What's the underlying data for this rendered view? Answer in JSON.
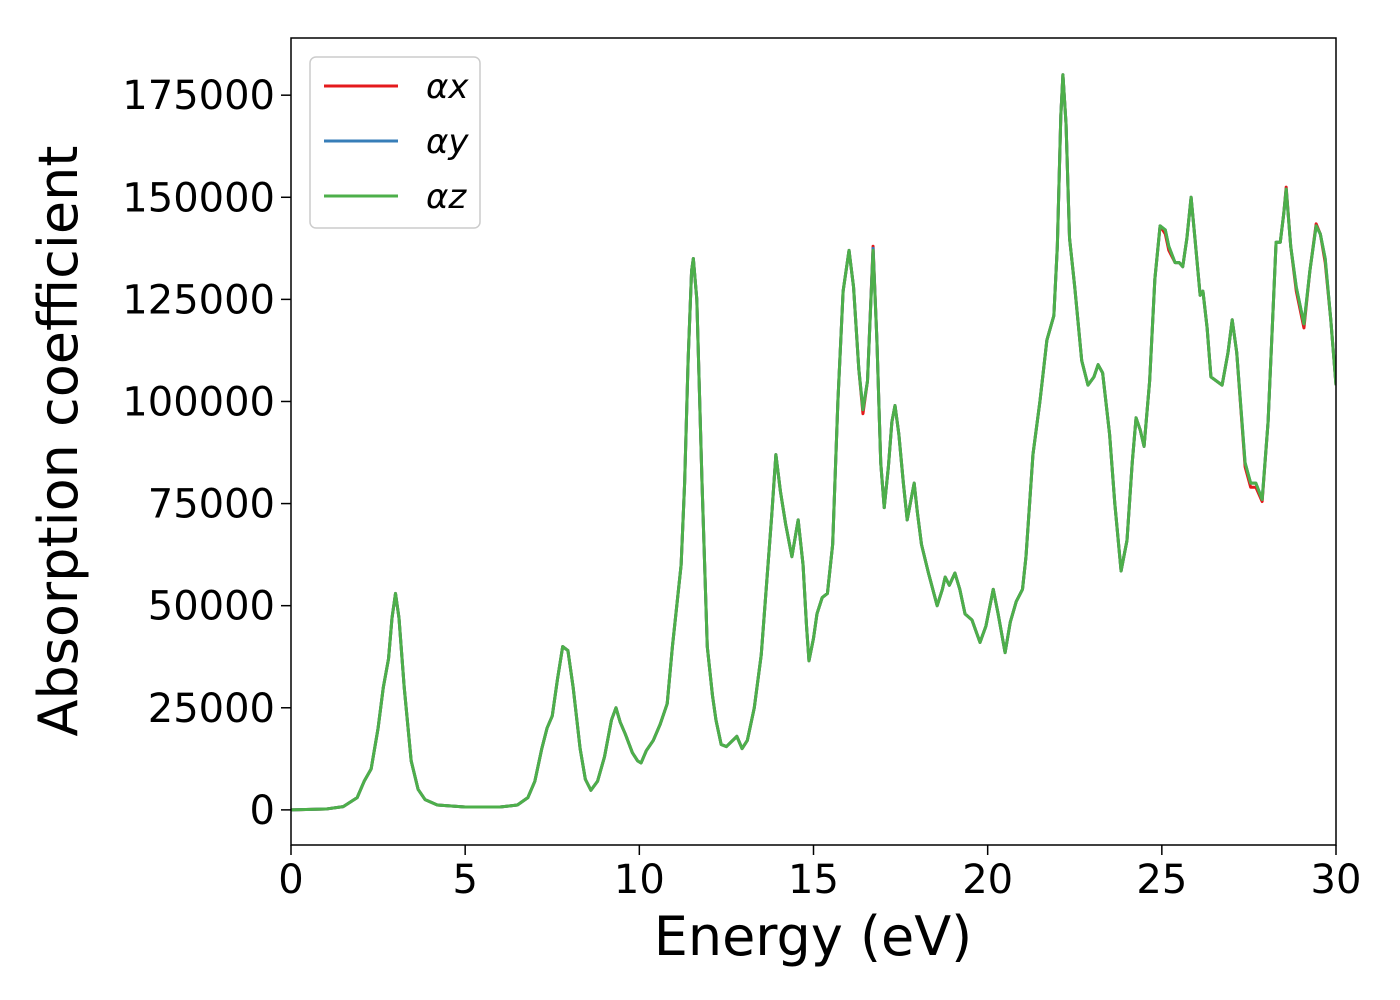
{
  "chart_data": {
    "type": "line",
    "xlabel": "Energy (eV)",
    "ylabel": "Absorption coefficient",
    "xlim": [
      0,
      30
    ],
    "xticks": [
      0,
      5,
      10,
      15,
      20,
      25,
      30
    ],
    "ylim": [
      -8600,
      189000
    ],
    "yticks": [
      0,
      25000,
      50000,
      75000,
      100000,
      125000,
      150000,
      175000
    ],
    "legend": "upper left",
    "x": [
      0,
      1,
      1.5,
      1.9,
      2.1,
      2.3,
      2.5,
      2.65,
      2.8,
      2.9,
      3.0,
      3.1,
      3.25,
      3.45,
      3.65,
      3.85,
      4.2,
      5,
      6,
      6.5,
      6.8,
      7.0,
      7.2,
      7.35,
      7.5,
      7.65,
      7.8,
      7.95,
      8.1,
      8.3,
      8.45,
      8.61,
      8.8,
      9.0,
      9.2,
      9.33,
      9.45,
      9.6,
      9.8,
      9.95,
      10.05,
      10.2,
      10.4,
      10.6,
      10.8,
      10.95,
      11.05,
      11.2,
      11.3,
      11.4,
      11.5,
      11.55,
      11.65,
      11.8,
      11.95,
      12.1,
      12.2,
      12.35,
      12.5,
      12.8,
      12.95,
      13.1,
      13.3,
      13.5,
      13.65,
      13.8,
      13.92,
      14.05,
      14.2,
      14.38,
      14.56,
      14.7,
      14.8,
      14.87,
      15.0,
      15.1,
      15.25,
      15.4,
      15.55,
      15.7,
      15.85,
      16.02,
      16.15,
      16.3,
      16.42,
      16.55,
      16.71,
      16.82,
      16.93,
      17.03,
      17.15,
      17.25,
      17.34,
      17.45,
      17.58,
      17.69,
      17.8,
      17.89,
      17.98,
      18.1,
      18.3,
      18.55,
      18.7,
      18.78,
      18.9,
      19.06,
      19.2,
      19.35,
      19.55,
      19.78,
      19.95,
      20.16,
      20.3,
      20.5,
      20.65,
      20.82,
      21.0,
      21.1,
      21.3,
      21.5,
      21.7,
      21.9,
      22.0,
      22.1,
      22.16,
      22.25,
      22.35,
      22.5,
      22.7,
      22.88,
      23.05,
      23.17,
      23.3,
      23.5,
      23.65,
      23.83,
      24.0,
      24.15,
      24.26,
      24.38,
      24.49,
      24.65,
      24.8,
      24.95,
      25.1,
      25.2,
      25.38,
      25.5,
      25.6,
      25.72,
      25.84,
      25.95,
      26.1,
      26.18,
      26.3,
      26.41,
      26.73,
      26.9,
      27.02,
      27.15,
      27.39,
      27.55,
      27.7,
      27.88,
      28.05,
      28.28,
      28.4,
      28.5,
      28.57,
      28.7,
      28.86,
      29.08,
      29.25,
      29.43,
      29.55,
      29.69,
      29.85,
      30
    ],
    "series": [
      {
        "name": "αx",
        "color": "#e41a1c",
        "values": [
          0,
          200,
          800,
          3000,
          7000,
          10000,
          20000,
          30000,
          37000,
          47000,
          53000,
          47000,
          30000,
          12000,
          5000,
          2500,
          1200,
          700,
          700,
          1200,
          3000,
          7000,
          15000,
          20000,
          23000,
          32000,
          40000,
          39000,
          30000,
          15000,
          7500,
          4800,
          7000,
          13000,
          22000,
          25000,
          21500,
          18500,
          14000,
          12000,
          11500,
          14500,
          17000,
          21000,
          26000,
          40000,
          48000,
          60000,
          80000,
          110000,
          132000,
          135000,
          125000,
          80000,
          40000,
          28000,
          22000,
          16000,
          15500,
          18000,
          15000,
          17000,
          25000,
          38000,
          55000,
          72000,
          87000,
          78000,
          70000,
          62000,
          71000,
          60000,
          45000,
          36500,
          42000,
          48000,
          52000,
          53000,
          65000,
          100000,
          127000,
          137000,
          128000,
          108000,
          97000,
          105000,
          138000,
          115000,
          85000,
          74000,
          84000,
          95000,
          99000,
          92000,
          80000,
          71000,
          76000,
          80000,
          73000,
          65000,
          58000,
          50000,
          54000,
          57000,
          55000,
          58000,
          54000,
          48000,
          46500,
          41000,
          45000,
          54000,
          48000,
          38500,
          46000,
          51000,
          54000,
          62000,
          87000,
          100000,
          115000,
          121000,
          138000,
          170000,
          180000,
          168000,
          140000,
          128000,
          110000,
          104000,
          106000,
          109000,
          107000,
          92000,
          75000,
          58500,
          66000,
          85000,
          96000,
          93000,
          89000,
          105000,
          130000,
          143000,
          141000,
          137000,
          134000,
          134000,
          133000,
          140000,
          150000,
          140000,
          126000,
          127000,
          118000,
          106000,
          104000,
          112000,
          120000,
          112000,
          84000,
          79000,
          79000,
          75500,
          95000,
          139000,
          139000,
          146000,
          152500,
          138000,
          127000,
          118000,
          132000,
          143500,
          141000,
          134000,
          120000,
          104000
        ]
      },
      {
        "name": "αy",
        "color": "#377eb8",
        "values": [
          0,
          200,
          800,
          3000,
          7000,
          10000,
          20000,
          30000,
          37000,
          47000,
          53000,
          47000,
          30000,
          12000,
          5000,
          2500,
          1200,
          700,
          700,
          1200,
          3000,
          7000,
          15000,
          20000,
          23000,
          32000,
          40000,
          39000,
          30000,
          15000,
          7500,
          4800,
          7000,
          13000,
          22000,
          25000,
          21500,
          18500,
          14000,
          12000,
          11500,
          14500,
          17000,
          21000,
          26000,
          40000,
          48000,
          60000,
          80000,
          110000,
          132000,
          135000,
          125000,
          80000,
          40000,
          28000,
          22000,
          16000,
          15500,
          18000,
          15000,
          17000,
          25000,
          38000,
          55000,
          72000,
          87000,
          78000,
          70000,
          62000,
          71000,
          60000,
          45000,
          36500,
          42000,
          48000,
          52000,
          53000,
          65000,
          100000,
          127000,
          137000,
          128000,
          108000,
          98000,
          105000,
          137500,
          115000,
          85000,
          74000,
          84000,
          95000,
          99000,
          92000,
          80000,
          71000,
          76000,
          80000,
          73000,
          65000,
          58000,
          50000,
          54000,
          57000,
          55000,
          58000,
          54000,
          48000,
          46500,
          41000,
          45000,
          54000,
          48000,
          38500,
          46000,
          51000,
          54000,
          62000,
          87000,
          100000,
          115000,
          121000,
          138000,
          170000,
          180000,
          168000,
          140000,
          128000,
          110000,
          104000,
          106000,
          109000,
          107000,
          92000,
          75000,
          58500,
          66000,
          85000,
          96000,
          93000,
          89000,
          105000,
          130000,
          143000,
          142000,
          138000,
          134000,
          134000,
          133000,
          140000,
          150000,
          140000,
          126000,
          127000,
          118000,
          106000,
          104000,
          112000,
          120000,
          112000,
          85000,
          80000,
          80000,
          76000,
          95000,
          139000,
          139000,
          146000,
          152000,
          138000,
          128000,
          119000,
          132000,
          143000,
          141000,
          135000,
          120000,
          104000
        ]
      },
      {
        "name": "αz",
        "color": "#4daf4a",
        "values": [
          0,
          200,
          800,
          3000,
          7000,
          10000,
          20000,
          30000,
          37000,
          47000,
          53000,
          47000,
          30000,
          12000,
          5000,
          2500,
          1200,
          700,
          700,
          1200,
          3000,
          7000,
          15000,
          20000,
          23000,
          32000,
          40000,
          39000,
          30000,
          15000,
          7500,
          4800,
          7000,
          13000,
          22000,
          25000,
          21500,
          18500,
          14000,
          12000,
          11500,
          14500,
          17000,
          21000,
          26000,
          40000,
          48000,
          60000,
          80000,
          110000,
          132000,
          135000,
          125000,
          80000,
          40000,
          28000,
          22000,
          16000,
          15500,
          18000,
          15000,
          17000,
          25000,
          38000,
          55000,
          72000,
          87000,
          78000,
          70000,
          62000,
          71000,
          60000,
          45000,
          36500,
          42000,
          48000,
          52000,
          53000,
          65000,
          100000,
          127000,
          137000,
          128000,
          108000,
          98000,
          105000,
          137000,
          115000,
          85000,
          74000,
          84000,
          95000,
          99000,
          92000,
          80000,
          71000,
          76000,
          80000,
          73000,
          65000,
          58000,
          50000,
          54000,
          57000,
          55000,
          58000,
          54000,
          48000,
          46500,
          41000,
          45000,
          54000,
          48000,
          38500,
          46000,
          51000,
          54000,
          62000,
          87000,
          100000,
          115000,
          121000,
          138000,
          170000,
          180000,
          168000,
          140000,
          128000,
          110000,
          104000,
          106000,
          109000,
          107000,
          92000,
          75000,
          58500,
          66000,
          85000,
          96000,
          93000,
          89000,
          105000,
          130000,
          143000,
          142000,
          138000,
          134000,
          134000,
          133000,
          140000,
          150000,
          140000,
          126000,
          127000,
          118000,
          106000,
          104000,
          112000,
          120000,
          112000,
          85000,
          80000,
          80000,
          76000,
          95000,
          139000,
          139000,
          146000,
          152000,
          138000,
          128000,
          119000,
          132000,
          143000,
          141000,
          135000,
          120000,
          104000
        ]
      }
    ]
  }
}
